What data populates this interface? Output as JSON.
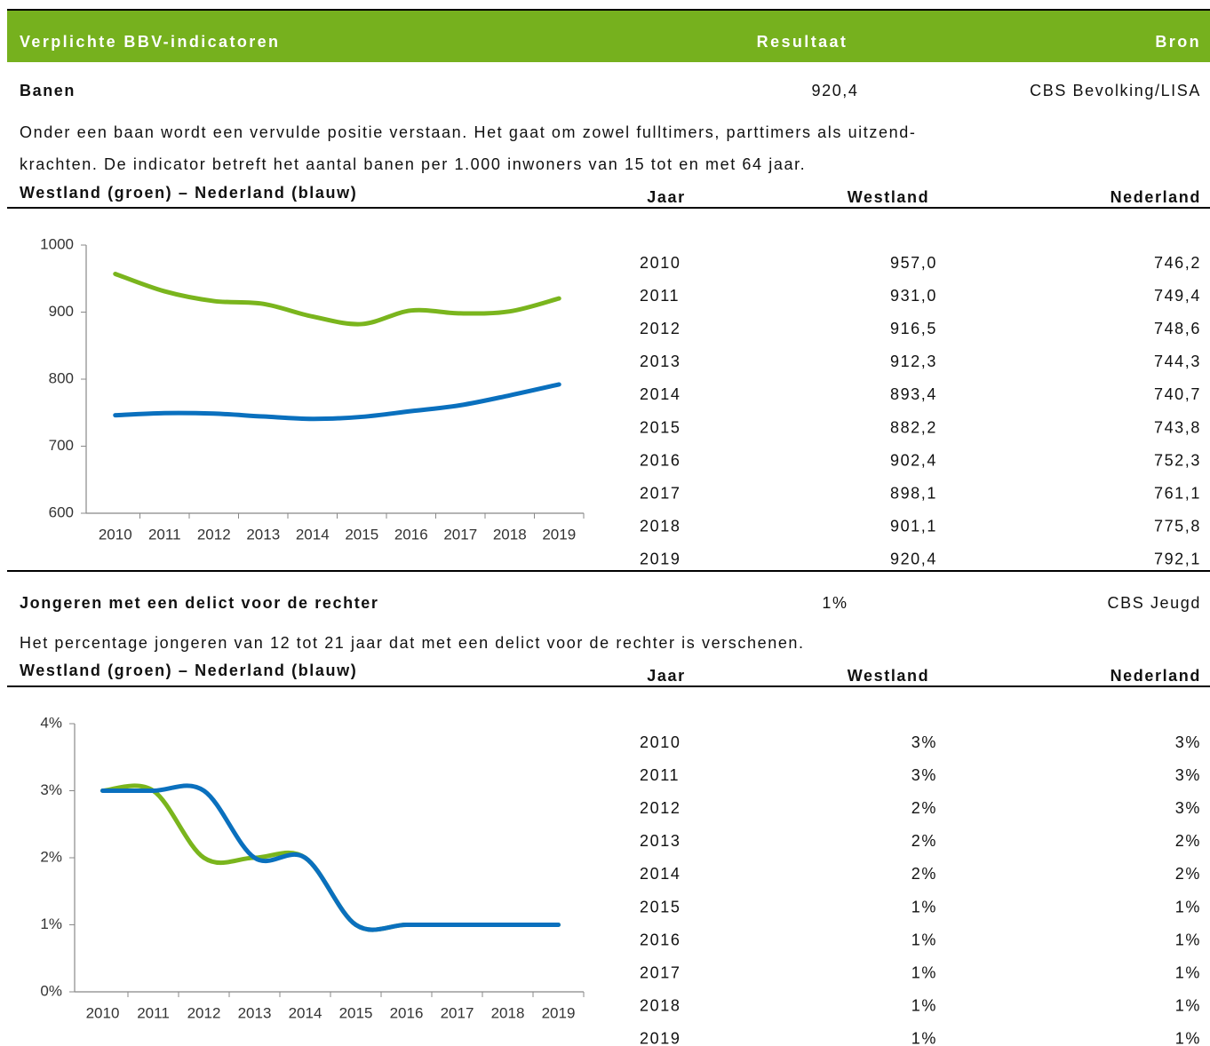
{
  "header": {
    "columns": [
      "Verplichte BBV-indicatoren",
      "Resultaat",
      "Bron"
    ]
  },
  "sections": [
    {
      "title": "Banen",
      "result": "920,4",
      "source": "CBS Bevolking/LISA",
      "description": [
        "Onder een baan wordt een vervulde positie verstaan. Het gaat om zowel fulltimers, parttimers als uitzend-",
        "krachten. De indicator betreft het aantal banen per 1.000 inwoners van 15 tot en met 64 jaar."
      ],
      "chart_caption": "Westland (groen) – Nederland (blauw)",
      "table": {
        "columns": [
          "Jaar",
          "Westland",
          "Nederland"
        ],
        "rows": [
          [
            "2010",
            "957,0",
            "746,2"
          ],
          [
            "2011",
            "931,0",
            "749,4"
          ],
          [
            "2012",
            "916,5",
            "748,6"
          ],
          [
            "2013",
            "912,3",
            "744,3"
          ],
          [
            "2014",
            "893,4",
            "740,7"
          ],
          [
            "2015",
            "882,2",
            "743,8"
          ],
          [
            "2016",
            "902,4",
            "752,3"
          ],
          [
            "2017",
            "898,1",
            "761,1"
          ],
          [
            "2018",
            "901,1",
            "775,8"
          ],
          [
            "2019",
            "920,4",
            "792,1"
          ]
        ]
      }
    },
    {
      "title": "Jongeren met een delict voor de rechter",
      "result": "1%",
      "source": "CBS Jeugd",
      "description": [
        "Het percentage jongeren van 12 tot 21 jaar dat met een delict voor de rechter is verschenen."
      ],
      "chart_caption": "Westland (groen) – Nederland (blauw)",
      "table": {
        "columns": [
          "Jaar",
          "Westland",
          "Nederland"
        ],
        "rows": [
          [
            "2010",
            "3%",
            "3%"
          ],
          [
            "2011",
            "3%",
            "3%"
          ],
          [
            "2012",
            "2%",
            "3%"
          ],
          [
            "2013",
            "2%",
            "2%"
          ],
          [
            "2014",
            "2%",
            "2%"
          ],
          [
            "2015",
            "1%",
            "1%"
          ],
          [
            "2016",
            "1%",
            "1%"
          ],
          [
            "2017",
            "1%",
            "1%"
          ],
          [
            "2018",
            "1%",
            "1%"
          ],
          [
            "2019",
            "1%",
            "1%"
          ]
        ]
      }
    }
  ],
  "chart_data": [
    {
      "type": "line",
      "categories": [
        "2010",
        "2011",
        "2012",
        "2013",
        "2014",
        "2015",
        "2016",
        "2017",
        "2018",
        "2019"
      ],
      "series": [
        {
          "color": "#7ab51d",
          "values": [
            957.0,
            931.0,
            916.5,
            912.3,
            893.4,
            882.2,
            902.4,
            898.1,
            901.1,
            920.4
          ]
        },
        {
          "color": "#0a70be",
          "values": [
            746.2,
            749.4,
            748.6,
            744.3,
            740.7,
            743.8,
            752.3,
            761.1,
            775.8,
            792.1
          ]
        }
      ],
      "ylim": [
        600,
        1000
      ],
      "yticks": [
        600,
        700,
        800,
        900,
        1000
      ]
    },
    {
      "type": "line",
      "categories": [
        "2010",
        "2011",
        "2012",
        "2013",
        "2014",
        "2015",
        "2016",
        "2017",
        "2018",
        "2019"
      ],
      "series": [
        {
          "color": "#7ab51d",
          "values": [
            3,
            3,
            2,
            2,
            2,
            1,
            1,
            1,
            1,
            1
          ]
        },
        {
          "color": "#0a70be",
          "values": [
            3,
            3,
            3,
            2,
            2,
            1,
            1,
            1,
            1,
            1
          ]
        }
      ],
      "ylim": [
        0,
        4
      ],
      "yticks": [
        {
          "value": 0,
          "label": "0%"
        },
        {
          "value": 1,
          "label": "1%"
        },
        {
          "value": 2,
          "label": "2%"
        },
        {
          "value": 3,
          "label": "3%"
        },
        {
          "value": 4,
          "label": "4%"
        }
      ]
    }
  ]
}
